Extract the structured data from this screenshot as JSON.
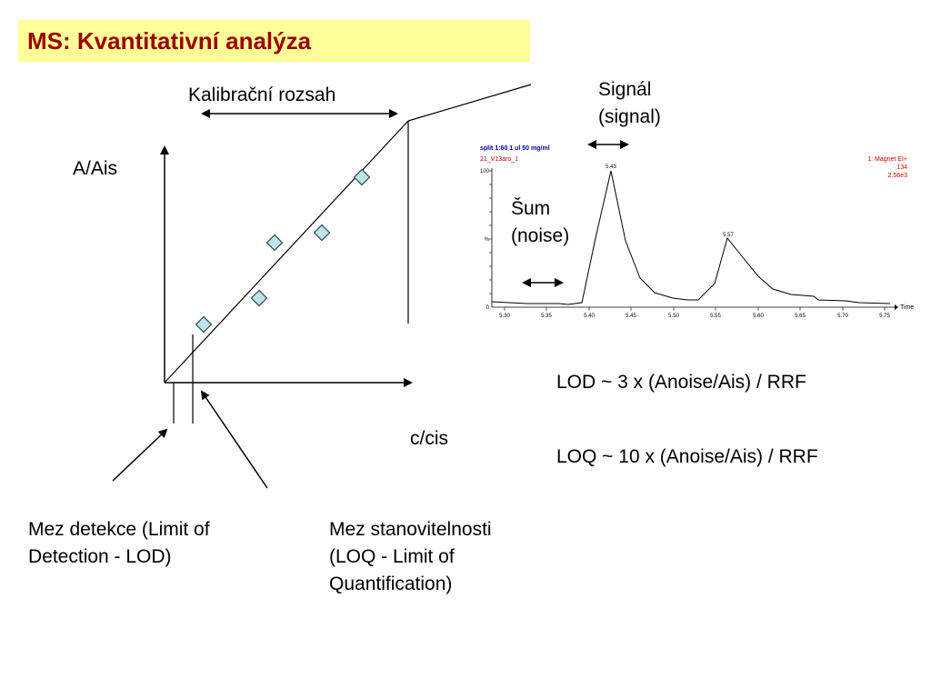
{
  "title": "MS: Kvantitativní analýza",
  "labels": {
    "calibration_range": "Kalibrační rozsah",
    "y_axis": "A/Ais",
    "x_axis": "c/cis",
    "signal_line1": "Signál",
    "signal_line2": "(signal)",
    "noise_line1": "Šum",
    "noise_line2": "(noise)",
    "lod_formula": "LOD ~ 3 x (Anoise/Ais) / RRF",
    "loq_formula": "LOQ ~ 10 x (Anoise/Ais) / RRF",
    "lod_desc_line1": "Mez detekce (Limit of",
    "lod_desc_line2": "Detection - LOD)",
    "loq_desc_line1": "Mez stanovitelnosti",
    "loq_desc_line2": "(LOQ - Limit of",
    "loq_desc_line3": "Quantification)"
  },
  "chromatogram": {
    "header_line1": "split 1:60  1 ul  50 mg/ml",
    "header_line2": "21_V13aro_1",
    "right_line1": "1: Magnet EI+",
    "right_line2": "134",
    "right_line3": "2.56e3",
    "y_top_label": "100",
    "y_mid_label": "%",
    "y_zero_label": "0",
    "time_label": "Time",
    "peak1_label": "5.43",
    "peak2_label": "5.57",
    "x_ticks": [
      "5.30",
      "5.35",
      "5.40",
      "5.45",
      "5.50",
      "5.55",
      "5.60",
      "5.65",
      "5.70",
      "5.75"
    ],
    "header_color": "#000099",
    "sub_color": "#cc0000"
  },
  "colors": {
    "title_bg": "#ffff99",
    "title_text": "#990000",
    "marker_fill": "#bfe3e8"
  }
}
